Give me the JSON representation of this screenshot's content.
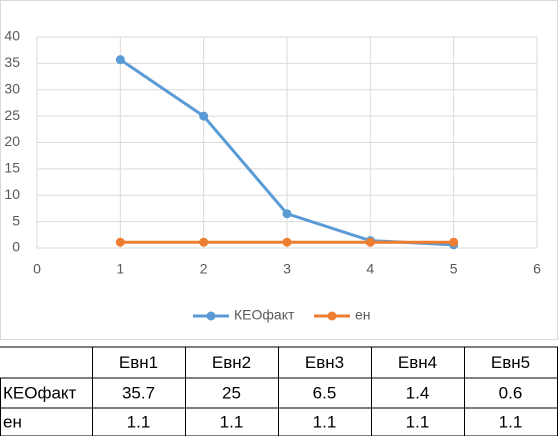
{
  "chart_data": {
    "type": "line",
    "xlim": [
      0,
      6
    ],
    "xticks": [
      0,
      1,
      2,
      3,
      4,
      5,
      6
    ],
    "ylim": [
      0,
      40
    ],
    "yticks": [
      0,
      5,
      10,
      15,
      20,
      25,
      30,
      35,
      40
    ],
    "grid": true,
    "legend": "bottom",
    "series": [
      {
        "name": "КЕОфакт",
        "color": "#5b9bd5",
        "x": [
          1,
          2,
          3,
          4,
          5
        ],
        "values": [
          35.7,
          25,
          6.5,
          1.4,
          0.6
        ]
      },
      {
        "name": "ен",
        "color": "#ed7d31",
        "x": [
          1,
          2,
          3,
          4,
          5
        ],
        "values": [
          1.1,
          1.1,
          1.1,
          1.1,
          1.1
        ]
      }
    ]
  },
  "table": {
    "columns": [
      "Евн1",
      "Евн2",
      "Евн3",
      "Евн4",
      "Евн5"
    ],
    "rows": [
      {
        "label": "КЕОфакт",
        "cells": [
          35.7,
          25,
          6.5,
          1.4,
          0.6
        ]
      },
      {
        "label": "ен",
        "cells": [
          1.1,
          1.1,
          1.1,
          1.1,
          1.1
        ]
      }
    ]
  }
}
